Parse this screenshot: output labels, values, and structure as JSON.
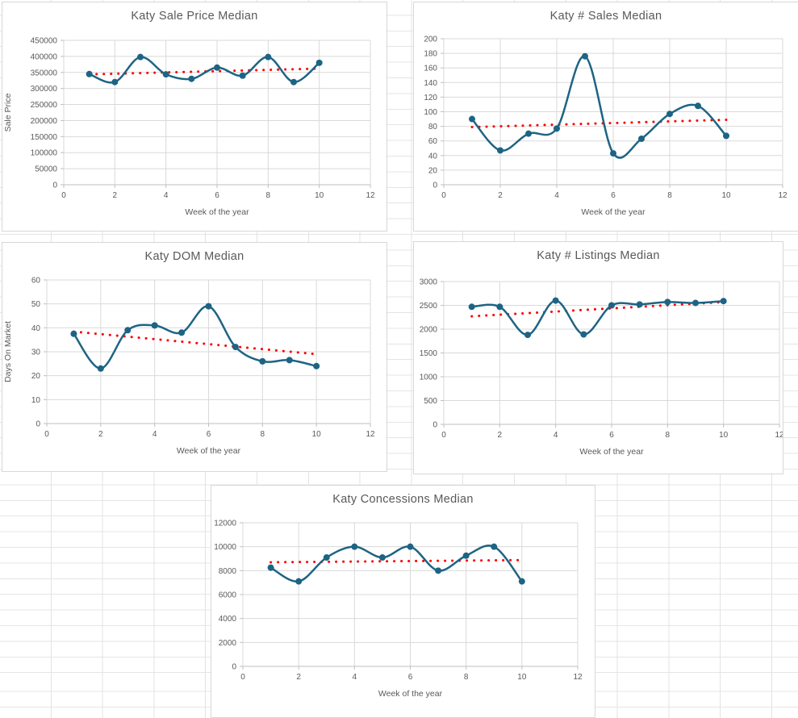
{
  "colors": {
    "series": "#1D6484",
    "trendline": "#FF0000",
    "text": "#595959",
    "plot_grid": "#D9D9D9",
    "axis_line": "#BFBFBF",
    "sheet_grid": "#E3E3E3",
    "chart_border": "#D7D7D7",
    "chart_background": "#FFFFFF"
  },
  "chart_data": [
    {
      "id": "sale-price",
      "type": "line",
      "title": "Katy Sale Price Median",
      "xlabel": "Week of the year",
      "ylabel": "Sale Price",
      "x": [
        1,
        2,
        3,
        4,
        5,
        6,
        7,
        8,
        9,
        10
      ],
      "values": [
        345000,
        320000,
        398000,
        344000,
        330000,
        365000,
        340000,
        398000,
        320000,
        380000
      ],
      "trendline": {
        "start": 344000,
        "end": 362000,
        "style": "dotted"
      },
      "xlim": [
        0,
        12
      ],
      "xticks": [
        0,
        2,
        4,
        6,
        8,
        10,
        12
      ],
      "ylim": [
        0,
        450000
      ],
      "yticks": [
        0,
        50000,
        100000,
        150000,
        200000,
        250000,
        300000,
        350000,
        400000,
        450000
      ],
      "grid": true,
      "smooth": true,
      "marker": "circle",
      "legend": false
    },
    {
      "id": "num-sales",
      "type": "line",
      "title": "Katy # Sales Median",
      "xlabel": "Week of the year",
      "ylabel": "",
      "x": [
        1,
        2,
        3,
        4,
        5,
        6,
        7,
        8,
        9,
        10
      ],
      "values": [
        90,
        47,
        70,
        77,
        176,
        43,
        63,
        97,
        108,
        67
      ],
      "trendline": {
        "start": 79,
        "end": 89,
        "style": "dotted"
      },
      "xlim": [
        0,
        12
      ],
      "xticks": [
        0,
        2,
        4,
        6,
        8,
        10,
        12
      ],
      "ylim": [
        0,
        200
      ],
      "yticks": [
        0,
        20,
        40,
        60,
        80,
        100,
        120,
        140,
        160,
        180,
        200
      ],
      "grid": true,
      "smooth": true,
      "marker": "circle",
      "legend": false
    },
    {
      "id": "dom",
      "type": "line",
      "title": "Katy DOM Median",
      "xlabel": "Week of the year",
      "ylabel": "Days On Market",
      "x": [
        1,
        2,
        3,
        4,
        5,
        6,
        7,
        8,
        9,
        10
      ],
      "values": [
        37.5,
        23,
        39,
        41,
        38,
        49,
        32,
        26,
        26.5,
        24
      ],
      "trendline": {
        "start": 38.4,
        "end": 29,
        "style": "dotted"
      },
      "xlim": [
        0,
        12
      ],
      "xticks": [
        0,
        2,
        4,
        6,
        8,
        10,
        12
      ],
      "ylim": [
        0,
        60
      ],
      "yticks": [
        0,
        10,
        20,
        30,
        40,
        50,
        60
      ],
      "grid": true,
      "smooth": true,
      "marker": "circle",
      "legend": false
    },
    {
      "id": "listings",
      "type": "line",
      "title": "Katy # Listings Median",
      "xlabel": "Week of the year",
      "ylabel": "",
      "x": [
        1,
        2,
        3,
        4,
        5,
        6,
        7,
        8,
        9,
        10
      ],
      "values": [
        2470,
        2470,
        1880,
        2600,
        1890,
        2500,
        2520,
        2570,
        2550,
        2590
      ],
      "trendline": {
        "start": 2270,
        "end": 2570,
        "style": "dotted"
      },
      "xlim": [
        0,
        12
      ],
      "xticks": [
        0,
        2,
        4,
        6,
        8,
        10,
        12
      ],
      "ylim": [
        0,
        3000
      ],
      "yticks": [
        0,
        500,
        1000,
        1500,
        2000,
        2500,
        3000
      ],
      "grid": true,
      "smooth": true,
      "marker": "circle",
      "legend": false
    },
    {
      "id": "concessions",
      "type": "line",
      "title": "Katy Concessions Median",
      "xlabel": "Week of the year",
      "ylabel": "",
      "x": [
        1,
        2,
        3,
        4,
        5,
        6,
        7,
        8,
        9,
        10
      ],
      "values": [
        8250,
        7100,
        9100,
        10000,
        9100,
        10000,
        8000,
        9250,
        10000,
        7100
      ],
      "trendline": {
        "start": 8700,
        "end": 8880,
        "style": "dotted"
      },
      "xlim": [
        0,
        12
      ],
      "xticks": [
        0,
        2,
        4,
        6,
        8,
        10,
        12
      ],
      "ylim": [
        0,
        12000
      ],
      "yticks": [
        0,
        2000,
        4000,
        6000,
        8000,
        10000,
        12000
      ],
      "grid": true,
      "smooth": true,
      "marker": "circle",
      "legend": false
    }
  ]
}
